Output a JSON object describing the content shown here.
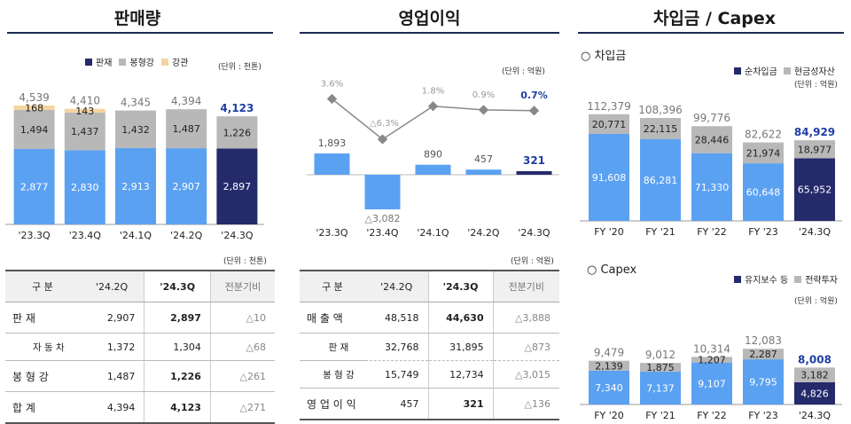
{
  "panels": {
    "sales": {
      "title": "판매량"
    },
    "op": {
      "title": "영업이익"
    },
    "debt": {
      "title": "차입금 / Capex"
    }
  },
  "colors": {
    "dark": "#252a6b",
    "blue": "#5ba1f2",
    "gray": "#b8b8b8",
    "peach": "#f5d5a0",
    "line": "#888888",
    "accent": "#1f3ea6"
  },
  "sales": {
    "unit": "(단위 : 천톤)",
    "legend": [
      "판재",
      "봉형강",
      "강관"
    ]
  },
  "op": {
    "unit": "(단위 : 억원)"
  },
  "debt": {
    "sub_title": "○ 차입금",
    "unit": "(단위 : 억원)",
    "legend": [
      "순차입금",
      "현금성자산"
    ]
  },
  "capex": {
    "sub_title": "○ Capex",
    "unit": "(단위 : 억원)",
    "legend": [
      "유지보수 등",
      "전략투자"
    ]
  },
  "chart_data": [
    {
      "type": "bar",
      "stacked": true,
      "categories": [
        "'23.3Q",
        "'23.4Q",
        "'24.1Q",
        "'24.2Q",
        "'24.3Q"
      ],
      "series": [
        {
          "name": "판재",
          "values": [
            2877,
            2830,
            2913,
            2907,
            2897
          ]
        },
        {
          "name": "봉형강",
          "values": [
            1494,
            1437,
            1432,
            1487,
            1226
          ]
        },
        {
          "name": "강관",
          "values": [
            168,
            143,
            null,
            null,
            null
          ]
        }
      ],
      "totals": [
        4539,
        4410,
        4345,
        4394,
        4123
      ],
      "labels": {
        "totals": [
          "4,539",
          "4,410",
          "4,345",
          "4,394",
          "4,123"
        ],
        "s0": [
          "2,877",
          "2,830",
          "2,913",
          "2,907",
          "2,897"
        ],
        "s1": [
          "1,494",
          "1,437",
          "1,432",
          "1,487",
          "1,226"
        ],
        "s2": [
          "168",
          "143",
          "",
          "",
          ""
        ]
      }
    },
    {
      "type": "bar",
      "categories": [
        "'23.3Q",
        "'23.4Q",
        "'24.1Q",
        "'24.2Q",
        "'24.3Q"
      ],
      "values": [
        1893,
        -3082,
        890,
        457,
        321
      ],
      "value_labels": [
        "1,893",
        "△3,082",
        "890",
        "457",
        "321"
      ],
      "line": {
        "values": [
          3.6,
          -6.3,
          1.8,
          0.9,
          0.7
        ],
        "labels": [
          "3.6%",
          "△6.3%",
          "1.8%",
          "0.9%",
          "0.7%"
        ]
      }
    },
    {
      "type": "bar",
      "stacked": true,
      "categories": [
        "FY '20",
        "FY '21",
        "FY '22",
        "FY '23",
        "'24.3Q"
      ],
      "series": [
        {
          "name": "순차입금",
          "values": [
            91608,
            86281,
            71330,
            60648,
            65952
          ]
        },
        {
          "name": "현금성자산",
          "values": [
            20771,
            22115,
            28446,
            21974,
            18977
          ]
        }
      ],
      "totals": [
        112379,
        108396,
        99776,
        82622,
        84929
      ],
      "labels": {
        "totals": [
          "112,379",
          "108,396",
          "99,776",
          "82,622",
          "84,929"
        ],
        "s0": [
          "91,608",
          "86,281",
          "71,330",
          "60,648",
          "65,952"
        ],
        "s1": [
          "20,771",
          "22,115",
          "28,446",
          "21,974",
          "18,977"
        ]
      }
    },
    {
      "type": "bar",
      "stacked": true,
      "categories": [
        "FY '20",
        "FY '21",
        "FY '22",
        "FY '23",
        "'24.3Q"
      ],
      "series": [
        {
          "name": "유지보수 등",
          "values": [
            7340,
            7137,
            9107,
            9795,
            4826
          ]
        },
        {
          "name": "전략투자",
          "values": [
            2139,
            1875,
            1207,
            2287,
            3182
          ]
        }
      ],
      "totals": [
        9479,
        9012,
        10314,
        12083,
        8008
      ],
      "labels": {
        "totals": [
          "9,479",
          "9,012",
          "10,314",
          "12,083",
          "8,008"
        ],
        "s0": [
          "7,340",
          "7,137",
          "9,107",
          "9,795",
          "4,826"
        ],
        "s1": [
          "2,139",
          "1,875",
          "1,207",
          "2,287",
          "3,182"
        ]
      }
    }
  ],
  "tables": {
    "sales": {
      "unit": "(단위 : 천톤)",
      "headers": [
        "구 분",
        "'24.2Q",
        "'24.3Q",
        "전분기비"
      ],
      "rows": [
        [
          "판     재",
          "2,907",
          "2,897",
          "△10"
        ],
        [
          "자 동 차",
          "1,372",
          "1,304",
          "△68"
        ],
        [
          "봉 형 강",
          "1,487",
          "1,226",
          "△261"
        ],
        [
          "합     계",
          "4,394",
          "4,123",
          "△271"
        ]
      ]
    },
    "op": {
      "unit": "(단위 : 억원)",
      "headers": [
        "구 분",
        "'24.2Q",
        "'24.3Q",
        "전분기비"
      ],
      "rows": [
        [
          "매 출 액",
          "48,518",
          "44,630",
          "△3,888"
        ],
        [
          "판     재",
          "32,768",
          "31,895",
          "△873"
        ],
        [
          "봉 형 강",
          "15,749",
          "12,734",
          "△3,015"
        ],
        [
          "영 업 이 익",
          "457",
          "321",
          "△136"
        ]
      ]
    }
  }
}
